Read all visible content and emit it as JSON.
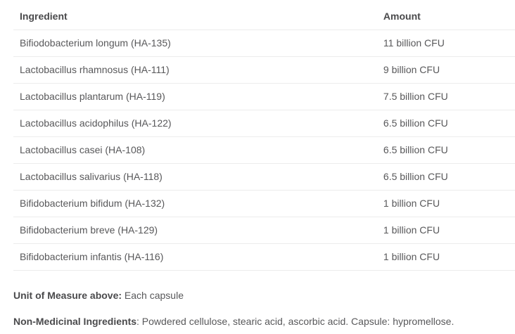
{
  "table": {
    "headers": {
      "ingredient": "Ingredient",
      "amount": "Amount"
    },
    "rows": [
      {
        "ingredient": "Bifiodobacterium longum (HA-135)",
        "amount": "11 billion CFU"
      },
      {
        "ingredient": "Lactobacillus rhamnosus (HA-111)",
        "amount": "9 billion CFU"
      },
      {
        "ingredient": "Lactobacillus plantarum (HA-119)",
        "amount": "7.5 billion CFU"
      },
      {
        "ingredient": "Lactobacillus acidophilus (HA-122)",
        "amount": "6.5 billion CFU"
      },
      {
        "ingredient": "Lactobacillus casei (HA-108)",
        "amount": "6.5 billion CFU"
      },
      {
        "ingredient": "Lactobacillus salivarius (HA-118)",
        "amount": "6.5 billion CFU"
      },
      {
        "ingredient": "Bifidobacterium bifidum (HA-132)",
        "amount": "1 billion CFU"
      },
      {
        "ingredient": "Bifidobacterium breve (HA-129)",
        "amount": "1 billion CFU"
      },
      {
        "ingredient": "Bifidobacterium infantis (HA-116)",
        "amount": "1 billion CFU"
      }
    ]
  },
  "footnotes": {
    "unit_label": "Unit of Measure above:",
    "unit_value": " Each capsule",
    "nonmedicinal_label": "Non-Medicinal Ingredients",
    "nonmedicinal_value": ": Powdered cellulose, stearic acid, ascorbic acid. Capsule: hypromellose."
  },
  "colors": {
    "text": "#58585a",
    "bold_text": "#4a4a4c",
    "row_border": "#ececec",
    "background": "#ffffff"
  }
}
